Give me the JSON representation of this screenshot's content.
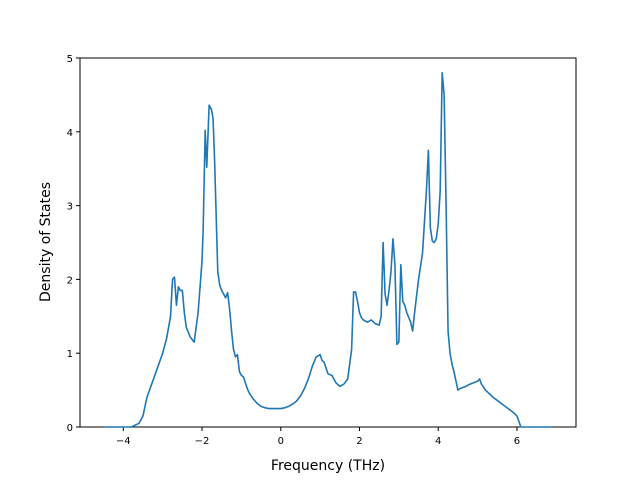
{
  "chart_data": {
    "type": "line",
    "title": "",
    "xlabel": "Frequency (THz)",
    "ylabel": "Density of States",
    "xlim": [
      -5.1,
      7.5
    ],
    "ylim": [
      0,
      5
    ],
    "xticks": [
      -4,
      -2,
      0,
      2,
      4,
      6
    ],
    "yticks": [
      0,
      1,
      2,
      3,
      4,
      5
    ],
    "grid": false,
    "line_color": "#1f77b4",
    "series": [
      {
        "x": [
          -4.5,
          -3.8,
          -3.6,
          -3.5,
          -3.4,
          -3.3,
          -3.2,
          -3.1,
          -3.0,
          -2.9,
          -2.85,
          -2.8,
          -2.75,
          -2.7,
          -2.65,
          -2.6,
          -2.55,
          -2.5,
          -2.45,
          -2.4,
          -2.3,
          -2.2,
          -2.1,
          -2.0,
          -1.97,
          -1.92,
          -1.88,
          -1.82,
          -1.76,
          -1.72,
          -1.68,
          -1.6,
          -1.55,
          -1.5,
          -1.45,
          -1.4,
          -1.35,
          -1.3,
          -1.25,
          -1.2,
          -1.15,
          -1.1,
          -1.05,
          -1.0,
          -0.95,
          -0.9,
          -0.85,
          -0.8,
          -0.7,
          -0.6,
          -0.5,
          -0.4,
          -0.3,
          -0.2,
          -0.1,
          0.0,
          0.1,
          0.2,
          0.3,
          0.4,
          0.5,
          0.6,
          0.7,
          0.8,
          0.9,
          1.0,
          1.05,
          1.1,
          1.15,
          1.2,
          1.3,
          1.4,
          1.5,
          1.6,
          1.7,
          1.8,
          1.85,
          1.9,
          1.95,
          2.0,
          2.05,
          2.1,
          2.2,
          2.3,
          2.4,
          2.5,
          2.55,
          2.6,
          2.65,
          2.7,
          2.75,
          2.8,
          2.85,
          2.9,
          2.95,
          3.0,
          3.05,
          3.1,
          3.15,
          3.2,
          3.3,
          3.35,
          3.4,
          3.5,
          3.6,
          3.7,
          3.75,
          3.8,
          3.85,
          3.9,
          3.95,
          4.0,
          4.05,
          4.1,
          4.15,
          4.2,
          4.25,
          4.3,
          4.35,
          4.4,
          4.5,
          4.55,
          4.6,
          4.7,
          4.8,
          4.9,
          5.0,
          5.05,
          5.1,
          5.2,
          5.3,
          5.4,
          5.5,
          5.6,
          5.7,
          5.8,
          5.9,
          6.0,
          6.1,
          6.2,
          6.5,
          6.9
        ],
        "values": [
          0.0,
          0.0,
          0.05,
          0.15,
          0.4,
          0.55,
          0.7,
          0.85,
          1.0,
          1.2,
          1.35,
          1.5,
          2.0,
          2.03,
          1.65,
          1.9,
          1.85,
          1.85,
          1.55,
          1.35,
          1.22,
          1.15,
          1.55,
          2.25,
          2.7,
          4.02,
          3.52,
          4.36,
          4.3,
          4.18,
          3.6,
          2.1,
          1.92,
          1.85,
          1.8,
          1.75,
          1.82,
          1.6,
          1.3,
          1.05,
          0.95,
          0.98,
          0.75,
          0.7,
          0.68,
          0.6,
          0.52,
          0.46,
          0.38,
          0.32,
          0.28,
          0.26,
          0.25,
          0.25,
          0.25,
          0.25,
          0.26,
          0.28,
          0.31,
          0.35,
          0.42,
          0.52,
          0.65,
          0.82,
          0.95,
          0.98,
          0.9,
          0.88,
          0.8,
          0.72,
          0.7,
          0.6,
          0.55,
          0.58,
          0.65,
          1.05,
          1.83,
          1.83,
          1.7,
          1.55,
          1.48,
          1.45,
          1.42,
          1.45,
          1.4,
          1.38,
          1.5,
          2.5,
          1.8,
          1.65,
          1.85,
          2.1,
          2.55,
          2.2,
          1.12,
          1.15,
          2.2,
          1.7,
          1.65,
          1.55,
          1.42,
          1.3,
          1.55,
          2.0,
          2.35,
          3.2,
          3.75,
          2.7,
          2.52,
          2.5,
          2.55,
          2.75,
          3.2,
          4.8,
          4.5,
          3.0,
          1.3,
          1.0,
          0.85,
          0.75,
          0.5,
          0.52,
          0.53,
          0.55,
          0.58,
          0.6,
          0.62,
          0.65,
          0.58,
          0.5,
          0.45,
          0.4,
          0.36,
          0.32,
          0.28,
          0.24,
          0.2,
          0.15,
          0.0,
          0.0,
          0.0,
          0.0
        ]
      }
    ]
  }
}
